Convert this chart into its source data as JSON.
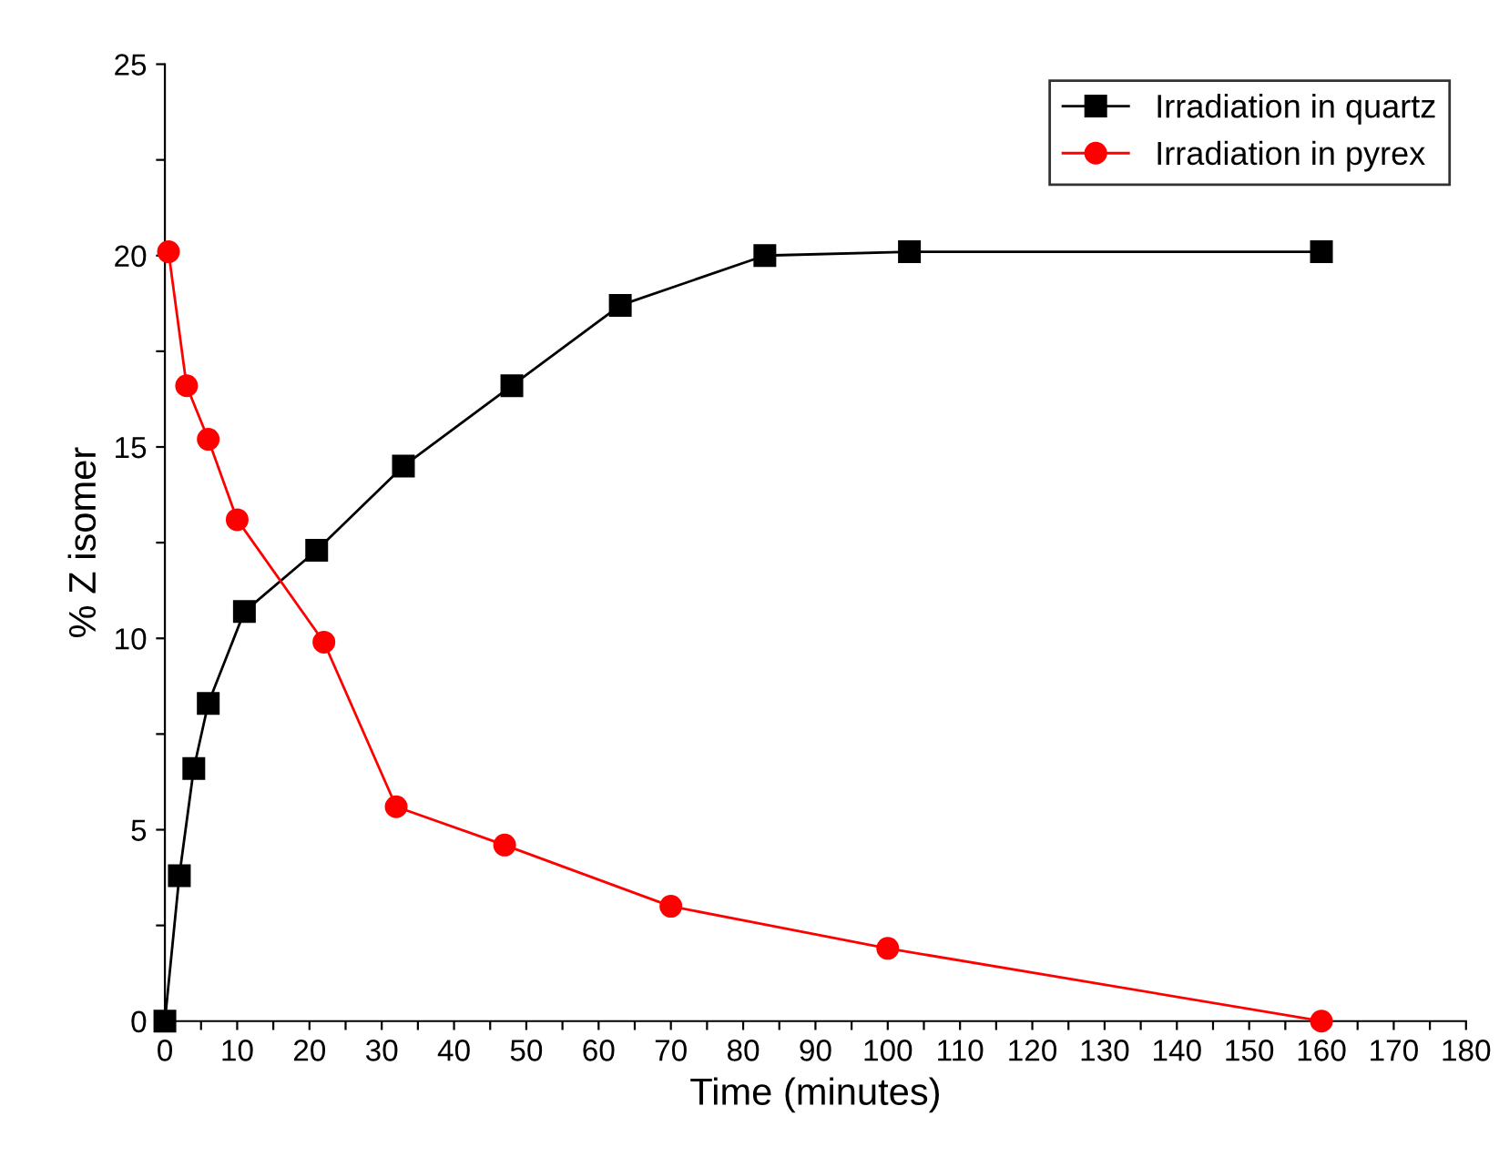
{
  "chart_data": {
    "type": "line",
    "xlabel": "Time (minutes)",
    "ylabel": "% Z isomer",
    "legend": "top right",
    "grid": false,
    "xlim": [
      0,
      180
    ],
    "ylim": [
      0,
      25
    ],
    "xticks": [
      0,
      {
        "value": 5,
        "label": null
      },
      10,
      {
        "value": 15,
        "label": null
      },
      20,
      {
        "value": 25,
        "label": null
      },
      30,
      {
        "value": 35,
        "label": null
      },
      40,
      {
        "value": 45,
        "label": null
      },
      50,
      {
        "value": 55,
        "label": null
      },
      60,
      {
        "value": 65,
        "label": null
      },
      70,
      {
        "value": 75,
        "label": null
      },
      80,
      {
        "value": 85,
        "label": null
      },
      90,
      {
        "value": 95,
        "label": null
      },
      100,
      {
        "value": 105,
        "label": null
      },
      110,
      {
        "value": 115,
        "label": null
      },
      120,
      {
        "value": 125,
        "label": null
      },
      130,
      {
        "value": 135,
        "label": null
      },
      140,
      {
        "value": 145,
        "label": null
      },
      150,
      {
        "value": 155,
        "label": null
      },
      160,
      {
        "value": 165,
        "label": null
      },
      170,
      {
        "value": 175,
        "label": null
      },
      180
    ],
    "yticks": [
      0,
      {
        "value": 2.5,
        "label": null
      },
      5,
      {
        "value": 7.5,
        "label": null
      },
      10,
      {
        "value": 12.5,
        "label": null
      },
      15,
      {
        "value": 17.5,
        "label": null
      },
      20,
      {
        "value": 22.5,
        "label": null
      },
      25
    ],
    "series": [
      {
        "name": "Irradiation in quartz",
        "color": "#000000",
        "marker": "square",
        "x": [
          0,
          2,
          4,
          6,
          11,
          21,
          33,
          48,
          63,
          83,
          103,
          160
        ],
        "values": [
          0,
          3.8,
          6.6,
          8.3,
          10.7,
          12.3,
          14.5,
          16.6,
          18.7,
          20.0,
          20.1,
          20.1
        ]
      },
      {
        "name": "Irradiation in pyrex",
        "color": "#ff0000",
        "marker": "circle",
        "x": [
          0.5,
          3,
          6,
          10,
          22,
          32,
          47,
          70,
          100,
          160
        ],
        "values": [
          20.1,
          16.6,
          15.2,
          13.1,
          9.9,
          5.6,
          4.6,
          3.0,
          1.9,
          0
        ]
      }
    ]
  }
}
